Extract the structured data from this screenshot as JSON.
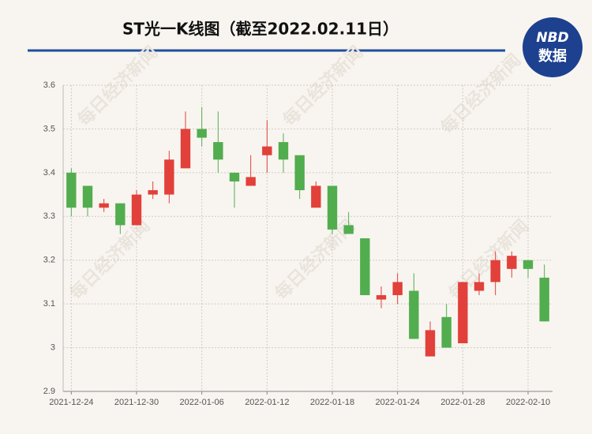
{
  "chart_data": {
    "type": "candlestick",
    "title": "ST光一K线图（截至2022.02.11日）",
    "logo": {
      "top": "NBD",
      "bottom": "数据"
    },
    "watermark": "每日经济新闻",
    "categories": [
      "2021-12-24",
      null,
      null,
      null,
      "2021-12-30",
      null,
      null,
      null,
      "2022-01-06",
      null,
      null,
      null,
      "2022-01-12",
      null,
      null,
      null,
      "2022-01-18",
      null,
      null,
      null,
      "2022-01-24",
      null,
      null,
      null,
      "2022-01-28",
      null,
      null,
      null,
      "2022-02-10",
      null
    ],
    "open": [
      3.4,
      3.37,
      3.32,
      3.33,
      3.28,
      3.35,
      3.35,
      3.41,
      3.5,
      3.47,
      3.4,
      3.37,
      3.44,
      3.47,
      3.44,
      3.32,
      3.37,
      3.28,
      3.25,
      3.11,
      3.12,
      3.13,
      2.98,
      3.07,
      3.01,
      3.13,
      3.15,
      3.18,
      3.2,
      3.16
    ],
    "high": [
      3.41,
      3.37,
      3.34,
      3.33,
      3.36,
      3.38,
      3.45,
      3.54,
      3.55,
      3.54,
      3.4,
      3.44,
      3.52,
      3.49,
      3.44,
      3.38,
      3.37,
      3.31,
      3.25,
      3.14,
      3.17,
      3.17,
      3.06,
      3.1,
      3.15,
      3.17,
      3.22,
      3.22,
      3.2,
      3.19
    ],
    "low": [
      3.3,
      3.3,
      3.31,
      3.26,
      3.28,
      3.34,
      3.33,
      3.41,
      3.46,
      3.4,
      3.32,
      3.37,
      3.4,
      3.4,
      3.34,
      3.32,
      3.26,
      3.26,
      3.12,
      3.09,
      3.1,
      3.02,
      2.98,
      3.0,
      3.01,
      3.12,
      3.12,
      3.16,
      3.16,
      3.06
    ],
    "close": [
      3.32,
      3.32,
      3.33,
      3.28,
      3.35,
      3.36,
      3.43,
      3.5,
      3.48,
      3.43,
      3.38,
      3.39,
      3.46,
      3.43,
      3.36,
      3.37,
      3.27,
      3.26,
      3.12,
      3.12,
      3.15,
      3.02,
      3.04,
      3.0,
      3.15,
      3.15,
      3.2,
      3.21,
      3.18,
      3.06
    ],
    "up_color": "#e2403a",
    "down_color": "#52ad4f",
    "ylim": [
      2.9,
      3.6
    ],
    "yticks": [
      2.9,
      3,
      3.1,
      3.2,
      3.3,
      3.4,
      3.5,
      3.6
    ],
    "grid": true
  }
}
